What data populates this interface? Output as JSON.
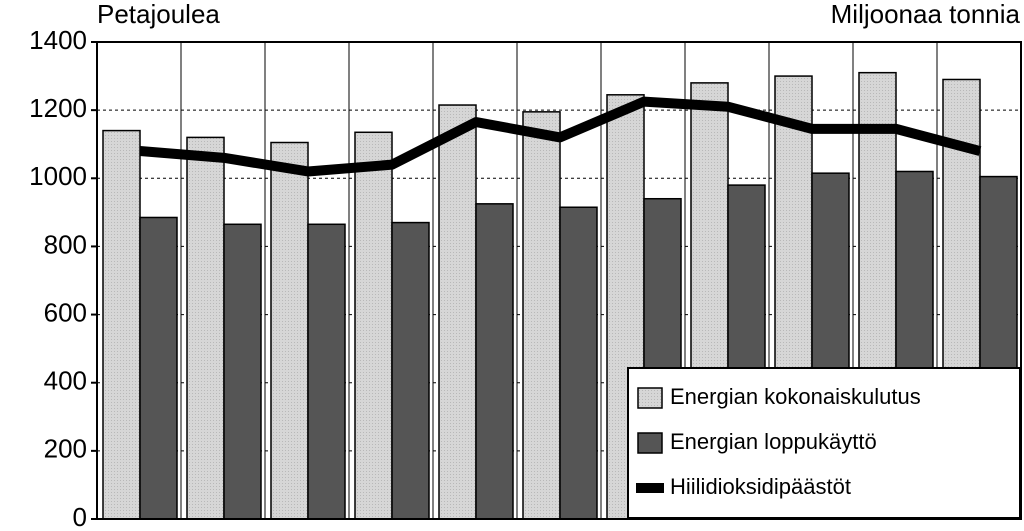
{
  "chart_data": {
    "type": "bar",
    "y_axis_label": "Petajoulea",
    "y2_axis_label": "Miljoonaa tonnia",
    "categories": [
      null,
      null,
      null,
      null,
      null,
      null,
      null,
      null,
      null,
      null,
      null
    ],
    "series": [
      {
        "name": "Energian kokonaiskulutus",
        "type": "bar",
        "color": "#d2d2d2",
        "values": [
          1140,
          1120,
          1105,
          1135,
          1215,
          1195,
          1245,
          1280,
          1300,
          1310,
          1290
        ]
      },
      {
        "name": "Energian loppukäyttö",
        "type": "bar",
        "color": "#555555",
        "values": [
          885,
          865,
          865,
          870,
          925,
          915,
          940,
          980,
          1015,
          1020,
          1005
        ]
      },
      {
        "name": "Hiilidioksidipäästöt",
        "type": "line",
        "color": "#000000",
        "values": [
          1080,
          1060,
          1020,
          1040,
          1165,
          1120,
          1225,
          1210,
          1145,
          1145,
          1080
        ]
      }
    ],
    "ylim": [
      0,
      1400
    ],
    "yticks": [
      0,
      200,
      400,
      600,
      800,
      1000,
      1200,
      1400
    ],
    "grid": true,
    "legend": "lower right"
  }
}
